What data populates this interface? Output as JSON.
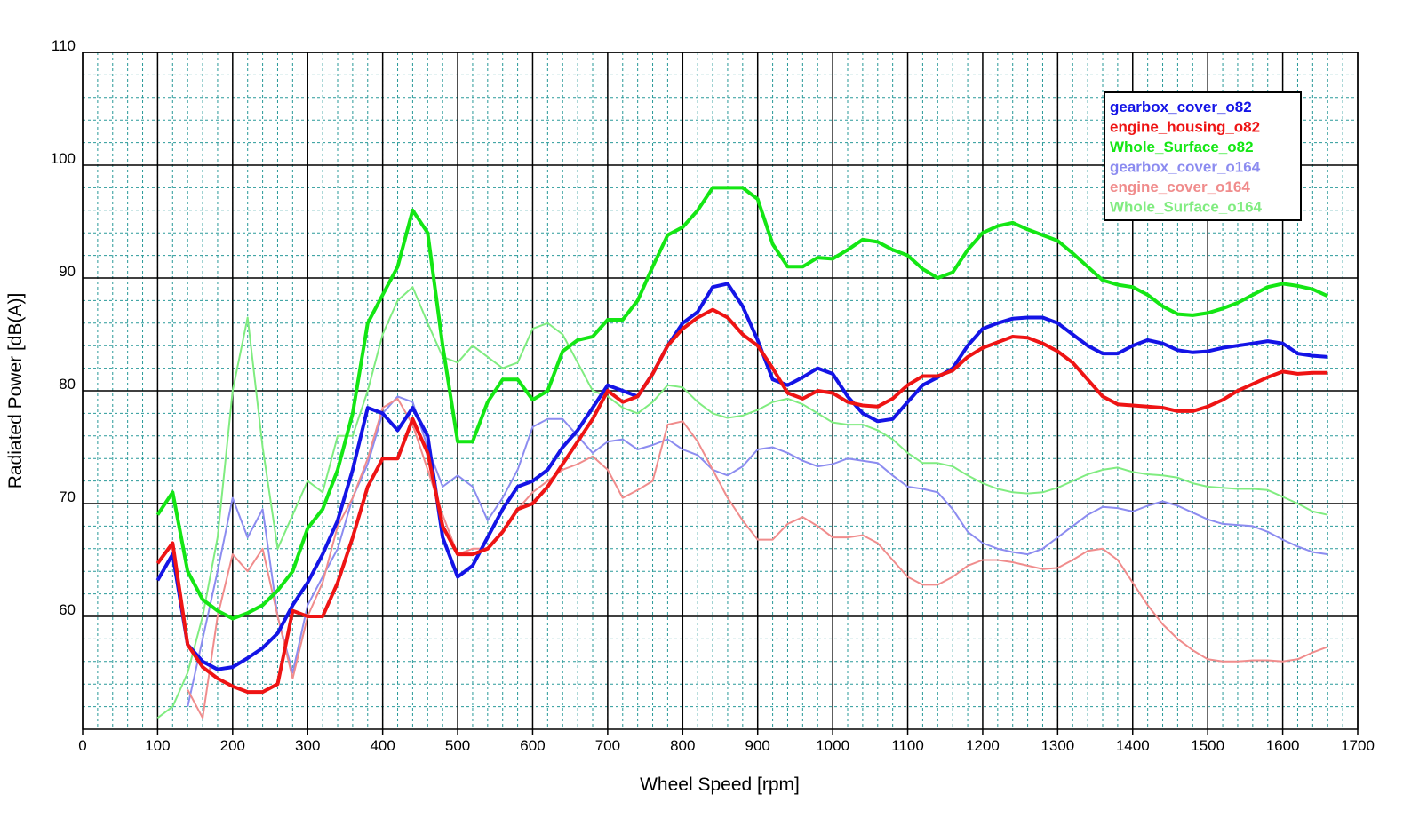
{
  "chart_data": {
    "type": "line",
    "xlabel": "Wheel Speed [rpm]",
    "ylabel": "Radiated Power [dB(A)]",
    "xlim": [
      0,
      1700
    ],
    "ylim": [
      50,
      110
    ],
    "xticks": [
      0,
      100,
      200,
      300,
      400,
      500,
      600,
      700,
      800,
      900,
      1000,
      1100,
      1200,
      1300,
      1400,
      1500,
      1600,
      1700
    ],
    "yticks": [
      60,
      70,
      80,
      90,
      100,
      110
    ],
    "grid": true,
    "legend": "upper right",
    "x": [
      100,
      120,
      140,
      160,
      180,
      200,
      220,
      240,
      260,
      280,
      300,
      320,
      340,
      360,
      380,
      400,
      420,
      440,
      460,
      480,
      500,
      520,
      540,
      560,
      580,
      600,
      620,
      640,
      660,
      680,
      700,
      720,
      740,
      760,
      780,
      800,
      820,
      840,
      860,
      880,
      900,
      920,
      940,
      960,
      980,
      1000,
      1020,
      1040,
      1060,
      1080,
      1100,
      1120,
      1140,
      1160,
      1180,
      1200,
      1220,
      1240,
      1260,
      1280,
      1300,
      1320,
      1340,
      1360,
      1380,
      1400,
      1420,
      1440,
      1460,
      1480,
      1500,
      1520,
      1540,
      1560,
      1580,
      1600,
      1620,
      1640,
      1660
    ],
    "series": [
      {
        "name": "gearbox_cover_o82",
        "color": "#1414e6",
        "width": 4,
        "values": [
          63.2,
          65.5,
          57.5,
          56,
          55.3,
          55.5,
          56.3,
          57.2,
          58.5,
          61,
          63,
          65.5,
          68.5,
          73,
          78.5,
          78,
          76.5,
          78.5,
          76,
          67,
          63.5,
          64.5,
          67,
          69.5,
          71.5,
          72,
          73,
          75,
          76.5,
          78.5,
          80.5,
          80,
          79.5,
          81.5,
          84,
          86,
          87,
          89.2,
          89.5,
          87.5,
          84.5,
          81,
          80.5,
          81.2,
          82,
          81.5,
          79.5,
          78,
          77.3,
          77.5,
          79,
          80.5,
          81.2,
          82,
          84,
          85.5,
          86,
          86.4,
          86.5,
          86.5,
          86,
          85,
          84,
          83.3,
          83.3,
          84,
          84.5,
          84.2,
          83.6,
          83.4,
          83.5,
          83.8,
          84,
          84.2,
          84.4,
          84.2,
          83.3,
          83.1,
          83
        ]
      },
      {
        "name": "engine_housing_o82",
        "color": "#ee1414",
        "width": 4,
        "values": [
          64.7,
          66.5,
          57.5,
          55.5,
          54.5,
          53.8,
          53.3,
          53.3,
          54,
          60.5,
          60,
          60,
          63,
          67,
          71.5,
          74,
          74,
          77.5,
          74.5,
          68,
          65.5,
          65.5,
          66,
          67.5,
          69.5,
          70,
          71.5,
          73.5,
          75.5,
          77.5,
          80,
          79,
          79.5,
          81.5,
          84,
          85.5,
          86.5,
          87.2,
          86.5,
          85,
          84,
          82,
          79.8,
          79.3,
          80,
          79.8,
          79,
          78.7,
          78.6,
          79.3,
          80.5,
          81.3,
          81.3,
          81.8,
          83,
          83.8,
          84.3,
          84.8,
          84.7,
          84.2,
          83.5,
          82.5,
          81,
          79.5,
          78.8,
          78.7,
          78.6,
          78.5,
          78.2,
          78.2,
          78.6,
          79.2,
          80,
          80.6,
          81.2,
          81.7,
          81.5,
          81.6,
          81.6
        ]
      },
      {
        "name": "Whole_Surface_o82",
        "color": "#14e614",
        "width": 4,
        "values": [
          69,
          71,
          64,
          61.5,
          60.5,
          59.8,
          60.3,
          61,
          62.3,
          64,
          67.8,
          69.5,
          73,
          78,
          86,
          88.5,
          91,
          96,
          94,
          84,
          75.5,
          75.5,
          79,
          81,
          81,
          79.2,
          80,
          83.5,
          84.5,
          84.8,
          86.3,
          86.3,
          88,
          91,
          93.8,
          94.5,
          96,
          98,
          98,
          98,
          97,
          93,
          91,
          91,
          91.8,
          91.7,
          92.5,
          93.4,
          93.2,
          92.5,
          92,
          90.8,
          90,
          90.5,
          92.5,
          94,
          94.6,
          94.9,
          94.3,
          93.8,
          93.3,
          92.2,
          91,
          89.8,
          89.4,
          89.2,
          88.5,
          87.5,
          86.8,
          86.7,
          86.9,
          87.3,
          87.8,
          88.5,
          89.2,
          89.5,
          89.3,
          89,
          88.4
        ]
      },
      {
        "name": "gearbox_cover_o164",
        "color": "#8c8cf0",
        "width": 2,
        "values": [
          null,
          null,
          52,
          58,
          64,
          70.5,
          67,
          69.5,
          60,
          55,
          61,
          63.5,
          66,
          70.5,
          73.5,
          78,
          79.5,
          79,
          75,
          71.5,
          72.5,
          71.5,
          68.5,
          70.5,
          73,
          76.8,
          77.5,
          77.5,
          76,
          74.5,
          75.5,
          75.7,
          74.8,
          75.2,
          75.7,
          74.8,
          74.3,
          73,
          72.5,
          73.3,
          74.8,
          75,
          74.5,
          73.8,
          73.3,
          73.5,
          74,
          73.8,
          73.6,
          72.5,
          71.5,
          71.3,
          71,
          69.5,
          67.5,
          66.5,
          66,
          65.7,
          65.5,
          66,
          67,
          68,
          69,
          69.7,
          69.6,
          69.3,
          69.8,
          70.2,
          69.8,
          69.2,
          68.6,
          68.2,
          68.1,
          68,
          67.5,
          66.8,
          66.2,
          65.7,
          65.5
        ]
      },
      {
        "name": "engine_cover_o164",
        "color": "#f08c8c",
        "width": 2,
        "values": [
          null,
          null,
          53.5,
          51,
          60,
          65.5,
          64,
          66,
          60,
          54.5,
          60,
          63,
          68,
          70.5,
          74,
          78.5,
          79.3,
          77,
          73,
          69,
          65.5,
          66,
          66,
          67.5,
          69.5,
          71,
          72,
          73,
          73.5,
          74.2,
          73,
          70.5,
          71.2,
          72,
          77,
          77.3,
          75.5,
          73,
          70.5,
          68.5,
          66.8,
          66.8,
          68.2,
          68.8,
          68,
          67,
          67,
          67.2,
          66.5,
          65,
          63.5,
          62.8,
          62.8,
          63.5,
          64.5,
          65,
          65,
          64.8,
          64.5,
          64.2,
          64.3,
          65,
          65.8,
          66,
          65,
          63,
          61,
          59.3,
          58,
          57,
          56.2,
          56,
          56,
          56.1,
          56.1,
          56,
          56.2,
          56.8,
          57.3
        ]
      },
      {
        "name": "Whole_Surface_o164",
        "color": "#80ec80",
        "width": 2,
        "values": [
          51,
          52,
          55,
          60,
          67,
          80,
          86.5,
          75,
          66,
          69,
          72,
          71,
          76,
          76,
          80,
          85,
          88,
          89.2,
          86,
          83,
          82.5,
          84,
          83,
          82,
          82.5,
          85.5,
          86,
          85,
          82.5,
          80,
          79.5,
          78.5,
          78,
          79,
          80.5,
          80.3,
          79,
          78,
          77.6,
          77.8,
          78.3,
          79,
          79.3,
          78.8,
          78,
          77.2,
          77,
          77,
          76.5,
          75.7,
          74.5,
          73.6,
          73.6,
          73.3,
          72.5,
          71.8,
          71.3,
          71,
          70.9,
          71,
          71.4,
          72,
          72.6,
          73,
          73.2,
          72.8,
          72.6,
          72.5,
          72.3,
          71.8,
          71.5,
          71.4,
          71.3,
          71.3,
          71.2,
          70.6,
          70,
          69.3,
          69
        ]
      }
    ]
  }
}
